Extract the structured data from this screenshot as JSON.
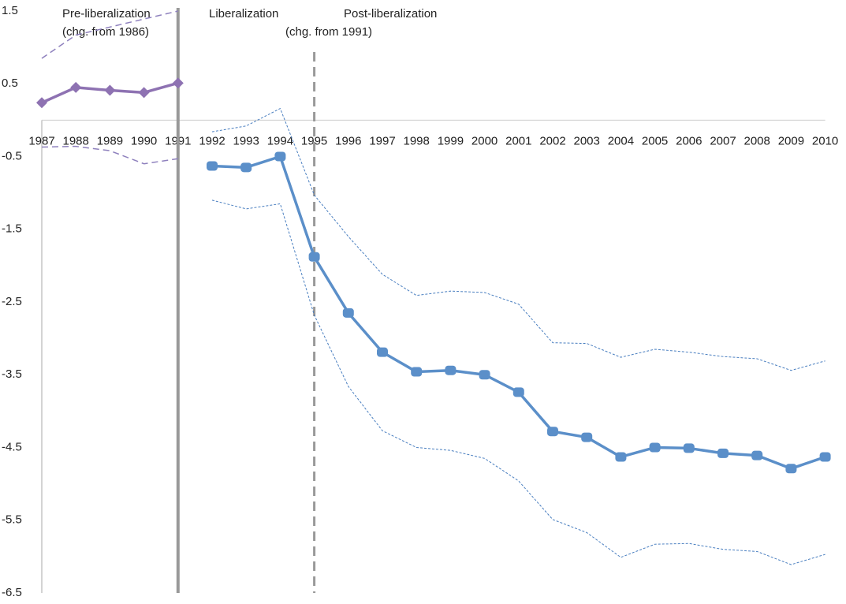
{
  "chart_data": {
    "type": "line",
    "annotations": [
      "Pre-liberalization",
      "(chg. from 1986)",
      "Liberalization",
      "Post-liberalization",
      "(chg. from 1991)"
    ],
    "categories": [
      "1987",
      "1988",
      "1989",
      "1990",
      "1991",
      "1992",
      "1993",
      "1994",
      "1995",
      "1996",
      "1997",
      "1998",
      "1999",
      "2000",
      "2001",
      "2002",
      "2003",
      "2004",
      "2005",
      "2006",
      "2007",
      "2008",
      "2009",
      "2010"
    ],
    "series": [
      {
        "color": "#8e72b2",
        "style": "solid",
        "marker": "diamond",
        "values": [
          0.24,
          0.45,
          0.41,
          0.38,
          0.51,
          null,
          null,
          null,
          null,
          null,
          null,
          null,
          null,
          null,
          null,
          null,
          null,
          null,
          null,
          null,
          null,
          null,
          null,
          null
        ]
      },
      {
        "color": "#8e80bd",
        "style": "dashed",
        "marker": "none",
        "values": [
          0.85,
          1.17,
          1.28,
          1.39,
          1.5,
          null,
          null,
          null,
          null,
          null,
          null,
          null,
          null,
          null,
          null,
          null,
          null,
          null,
          null,
          null,
          null,
          null,
          null,
          null
        ]
      },
      {
        "color": "#8e80bd",
        "style": "dashed",
        "marker": "none",
        "values": [
          -0.37,
          -0.36,
          -0.42,
          -0.6,
          -0.53,
          null,
          null,
          null,
          null,
          null,
          null,
          null,
          null,
          null,
          null,
          null,
          null,
          null,
          null,
          null,
          null,
          null,
          null,
          null
        ]
      },
      {
        "color": "#5b8fc9",
        "style": "solid",
        "marker": "square",
        "values": [
          null,
          null,
          null,
          null,
          null,
          -0.63,
          -0.65,
          -0.5,
          -1.88,
          -2.65,
          -3.19,
          -3.46,
          -3.44,
          -3.5,
          -3.74,
          -4.28,
          -4.36,
          -4.63,
          -4.5,
          -4.51,
          -4.58,
          -4.61,
          -4.79,
          -4.63
        ]
      },
      {
        "color": "#4a7fc0",
        "style": "dotted",
        "marker": "none",
        "values": [
          null,
          null,
          null,
          null,
          null,
          -0.16,
          -0.08,
          0.16,
          -1.03,
          -1.6,
          -2.12,
          -2.41,
          -2.35,
          -2.37,
          -2.53,
          -3.06,
          -3.07,
          -3.26,
          -3.15,
          -3.19,
          -3.25,
          -3.28,
          -3.44,
          -3.31
        ]
      },
      {
        "color": "#4a7fc0",
        "style": "dotted",
        "marker": "none",
        "values": [
          null,
          null,
          null,
          null,
          null,
          -1.1,
          -1.22,
          -1.15,
          -2.68,
          -3.66,
          -4.27,
          -4.5,
          -4.54,
          -4.65,
          -4.96,
          -5.49,
          -5.67,
          -6.01,
          -5.83,
          -5.82,
          -5.9,
          -5.93,
          -6.11,
          -5.97
        ]
      }
    ],
    "reference_lines": [
      {
        "x": "1991",
        "style": "solid",
        "color": "#999999"
      },
      {
        "x": "1995",
        "style": "dashed",
        "color": "#999999"
      }
    ],
    "ylim": [
      -6.5,
      1.5
    ],
    "yticks": [
      -6.5,
      -5.5,
      -4.5,
      -3.5,
      -2.5,
      -1.5,
      -0.5,
      0.5,
      1.5
    ]
  }
}
